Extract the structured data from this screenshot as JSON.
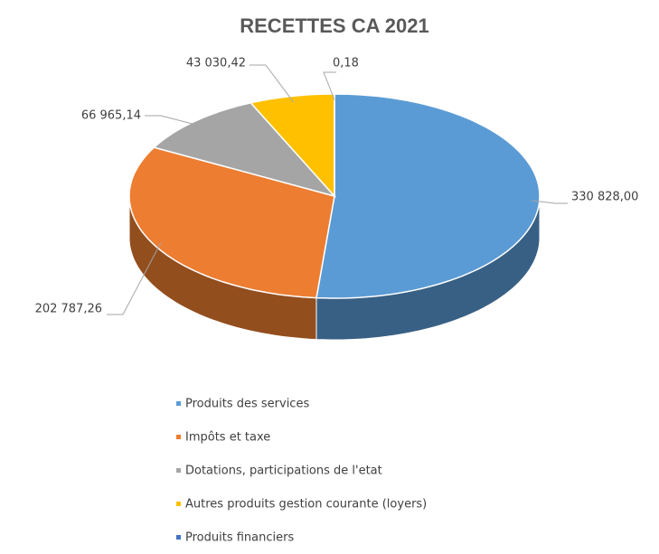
{
  "chart_data": {
    "type": "pie",
    "title": "RECETTES CA 2021",
    "categories": [
      "Produits des services",
      "Impôts et taxe",
      "Dotations, participations de l'etat",
      "Autres produits gestion courante (loyers)",
      "Produits financiers"
    ],
    "values": [
      330828.0,
      202787.26,
      66965.14,
      43030.42,
      0.18
    ],
    "value_labels": [
      "330 828,00",
      "202 787,26",
      "66 965,14",
      "43 030,42",
      "0,18"
    ],
    "colors": [
      "#5b9bd5",
      "#ed7d31",
      "#a5a5a5",
      "#ffc000",
      "#4472c4"
    ],
    "legend": "bottom"
  }
}
